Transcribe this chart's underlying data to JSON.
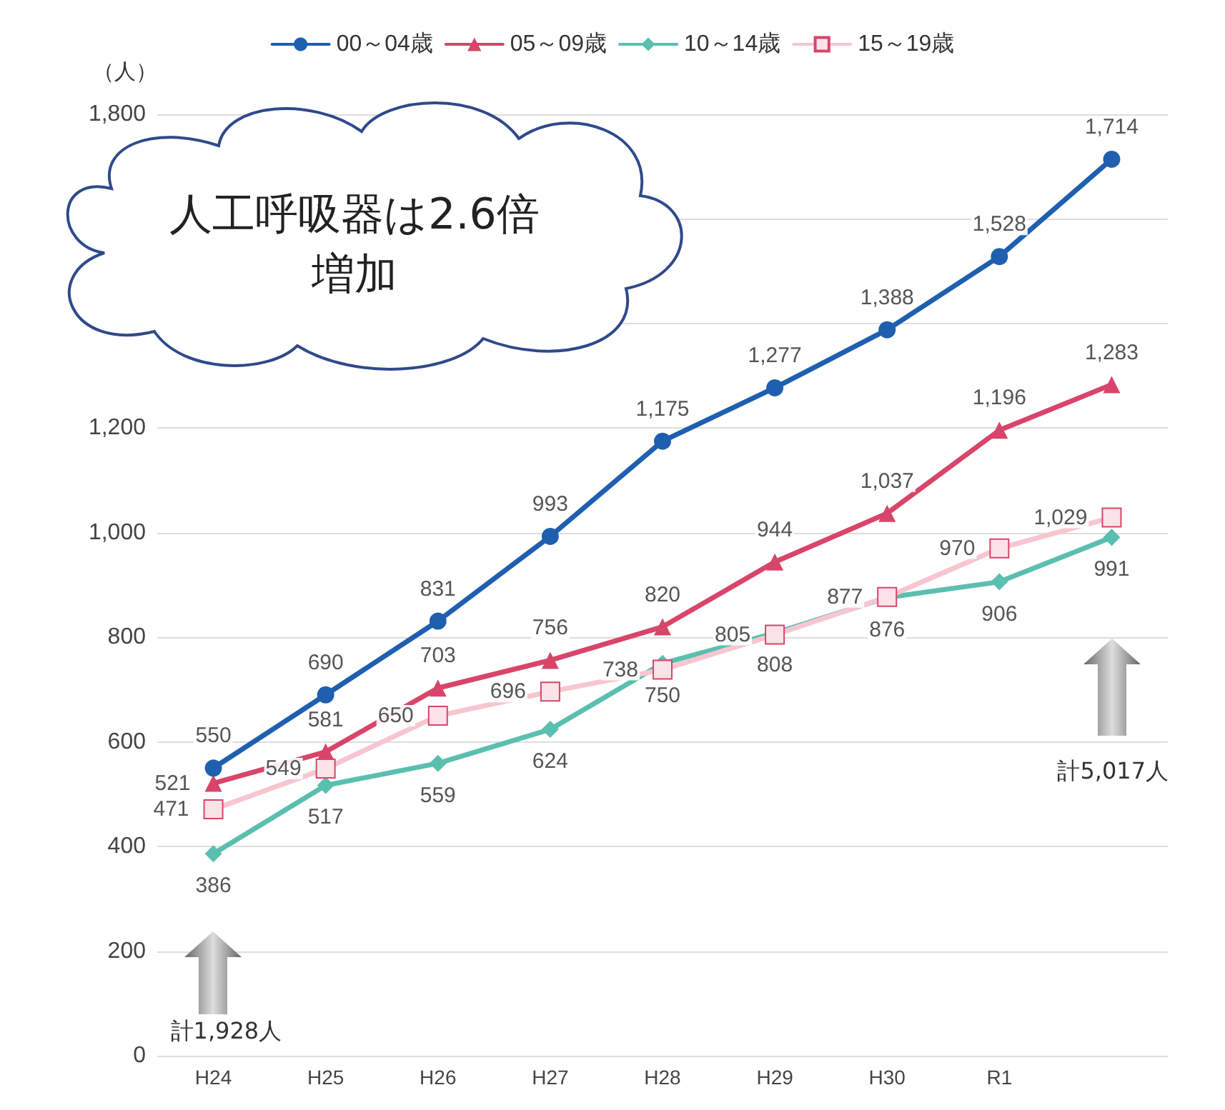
{
  "chart_data": {
    "type": "line",
    "ylabel": "（人）",
    "categories": [
      "H24",
      "H25",
      "H26",
      "H27",
      "H28",
      "H29",
      "H30",
      "R1",
      null
    ],
    "series": [
      {
        "name": "00～04歳",
        "color": "#1f5fb0",
        "marker": "circle",
        "values": [
          550,
          690,
          831,
          993,
          1175,
          1277,
          1388,
          1528,
          1714
        ],
        "value_labels": [
          "550",
          "690",
          "831",
          "993",
          "1,175",
          "1,277",
          "1,388",
          "1,528",
          "1,714"
        ]
      },
      {
        "name": "05～09歳",
        "color": "#d9456a",
        "marker": "triangle",
        "values": [
          521,
          581,
          703,
          756,
          820,
          944,
          1037,
          1196,
          1283
        ],
        "value_labels": [
          "521",
          "581",
          "703",
          "756",
          "820",
          "944",
          "1,037",
          "1,196",
          "1,283"
        ]
      },
      {
        "name": "10～14歳",
        "color": "#5bbfb0",
        "marker": "diamond",
        "values": [
          386,
          517,
          559,
          624,
          750,
          808,
          876,
          906,
          991
        ],
        "value_labels": [
          "386",
          "517",
          "559",
          "624",
          "750",
          "808",
          "876",
          "906",
          "991"
        ]
      },
      {
        "name": "15～19歳",
        "color": "#f7c6d0",
        "marker": "square",
        "values": [
          471,
          549,
          650,
          696,
          738,
          805,
          877,
          970,
          1029
        ],
        "value_labels": [
          "471",
          "549",
          "650",
          "696",
          "738",
          "805",
          "877",
          "970",
          "1,029"
        ]
      }
    ],
    "ylim": [
      0,
      1800
    ],
    "yticks": [
      0,
      200,
      400,
      600,
      800,
      {
        "value": 1000,
        "label": "1,000"
      },
      {
        "value": 1200,
        "label": "1,200"
      },
      {
        "value": 1400,
        "label": null
      },
      {
        "value": 1600,
        "label": null
      },
      {
        "value": 1800,
        "label": "1,800"
      }
    ],
    "grid": "y",
    "legend": "top",
    "line_style": "solid",
    "annotations": [
      "人工呼吸器は2.6倍増加",
      "計1,928人",
      "計5,017人"
    ]
  }
}
